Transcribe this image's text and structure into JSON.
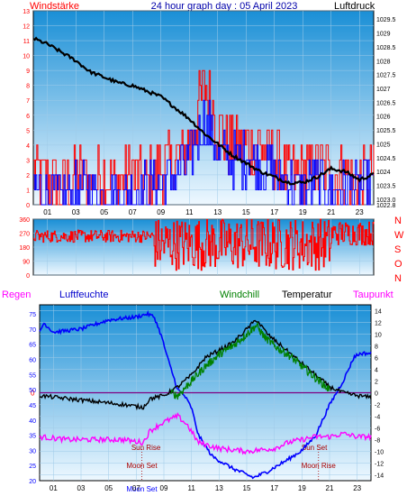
{
  "header": {
    "left_label": "Windstärke",
    "title": "24 hour graph day : 05 April 2023",
    "right_label": "Luftdruck"
  },
  "labels": {
    "regen": "Regen",
    "luftfeuchte": "Luftfeuchte",
    "windchill": "Windchill",
    "temperatur": "Temperatur",
    "taupunkt": "Taupunkt",
    "sun_rise": "Sun Rise",
    "sun_set": "Sun Set",
    "moon_set": "Moon Set",
    "moon_rise": "Moon Rise",
    "moon_set_axis": "Moon Set",
    "compass": [
      "N",
      "W",
      "S",
      "O",
      "N"
    ]
  },
  "colors": {
    "bg_top": "#1a8fd6",
    "bg_bottom": "#eaf6ff",
    "wind": "#ff0000",
    "gust": "#0000ff",
    "pressure": "#000000",
    "winddir": "#ff0000",
    "humidity": "#0000ff",
    "temperature": "#000000",
    "windchill": "#008000",
    "dewpoint": "#ff00ff",
    "axis_red": "#ff0000",
    "axis_blue": "#0000ff",
    "zero_line": "#800080"
  },
  "chart_data": [
    {
      "type": "line",
      "name": "wind-pressure",
      "x_ticks": [
        "01",
        "03",
        "05",
        "07",
        "09",
        "11",
        "13",
        "15",
        "17",
        "19",
        "21",
        "23"
      ],
      "xlim": [
        0,
        24
      ],
      "y_left": {
        "ticks": [
          "0",
          "1",
          "2",
          "3",
          "4",
          "5",
          "6",
          "7",
          "8",
          "9",
          "10",
          "11",
          "12",
          "13"
        ],
        "ylim": [
          0,
          13
        ]
      },
      "y_right": {
        "ticks": [
          "1022.8",
          "1023.0",
          "1023.5",
          "1024",
          "1024.5",
          "1025",
          "1025.5",
          "1026",
          "1026.5",
          "1027",
          "1027.5",
          "1028",
          "1028.5",
          "1029",
          "1029.5"
        ],
        "ylim": [
          1022.8,
          1029.8
        ]
      },
      "wind_base": [
        [
          0,
          2
        ],
        [
          2,
          1
        ],
        [
          3,
          2
        ],
        [
          4,
          1.5
        ],
        [
          5,
          2
        ],
        [
          6,
          1.5
        ],
        [
          7,
          2
        ],
        [
          8,
          1.5
        ],
        [
          9,
          2.5
        ],
        [
          10,
          3
        ],
        [
          11,
          4
        ],
        [
          11.5,
          6
        ],
        [
          12,
          8
        ],
        [
          12.5,
          7
        ],
        [
          13,
          5
        ],
        [
          14,
          4
        ],
        [
          15,
          4
        ],
        [
          16,
          4
        ],
        [
          17,
          3
        ],
        [
          18,
          2
        ],
        [
          19,
          2
        ],
        [
          20,
          2.5
        ],
        [
          21,
          2
        ],
        [
          22,
          2
        ],
        [
          23,
          1.5
        ],
        [
          24,
          2
        ]
      ],
      "gust_base": [
        [
          0,
          1
        ],
        [
          2,
          0.5
        ],
        [
          4,
          1
        ],
        [
          6,
          0.5
        ],
        [
          8,
          1
        ],
        [
          9,
          1.5
        ],
        [
          10,
          2
        ],
        [
          11,
          3
        ],
        [
          11.5,
          4.5
        ],
        [
          12,
          5.5
        ],
        [
          12.5,
          5
        ],
        [
          13,
          3.5
        ],
        [
          14,
          3
        ],
        [
          15,
          3
        ],
        [
          16,
          3
        ],
        [
          17,
          2
        ],
        [
          18,
          1.5
        ],
        [
          19,
          1
        ],
        [
          20,
          1.5
        ],
        [
          21,
          1
        ],
        [
          22,
          1
        ],
        [
          24,
          1
        ]
      ],
      "pressure": [
        [
          0,
          1028.8
        ],
        [
          1,
          1028.6
        ],
        [
          2,
          1028.3
        ],
        [
          3,
          1028.0
        ],
        [
          4,
          1027.6
        ],
        [
          5,
          1027.4
        ],
        [
          6,
          1027.2
        ],
        [
          7,
          1027.1
        ],
        [
          8,
          1026.9
        ],
        [
          9,
          1026.7
        ],
        [
          10,
          1026.3
        ],
        [
          11,
          1025.9
        ],
        [
          12,
          1025.4
        ],
        [
          13,
          1025.0
        ],
        [
          14,
          1024.6
        ],
        [
          15,
          1024.3
        ],
        [
          16,
          1024.0
        ],
        [
          17,
          1023.8
        ],
        [
          18,
          1023.6
        ],
        [
          19,
          1023.6
        ],
        [
          20,
          1023.8
        ],
        [
          21,
          1024.1
        ],
        [
          22,
          1024.0
        ],
        [
          23,
          1023.7
        ],
        [
          24,
          1023.9
        ]
      ]
    },
    {
      "type": "line",
      "name": "wind-direction",
      "y_ticks": [
        "0",
        "90",
        "180",
        "270",
        "360"
      ],
      "ylim": [
        0,
        360
      ],
      "x_ticks": [
        "01",
        "03",
        "05",
        "07",
        "09",
        "11",
        "13",
        "15",
        "17",
        "19",
        "21",
        "23"
      ],
      "segments": [
        {
          "from": 0,
          "to": 8.5,
          "center": 250,
          "spread": 40
        },
        {
          "from": 8.5,
          "to": 21,
          "center": 200,
          "spread": 170
        },
        {
          "from": 21,
          "to": 24,
          "center": 270,
          "spread": 80
        }
      ]
    },
    {
      "type": "line",
      "name": "temperature-humidity",
      "x_ticks": [
        "01",
        "03",
        "05",
        "07",
        "09",
        "11",
        "13",
        "15",
        "17",
        "19",
        "21",
        "23"
      ],
      "xlim": [
        0,
        24
      ],
      "y_left": {
        "ticks": [
          "20",
          "25",
          "30",
          "35",
          "40",
          "45",
          "50",
          "55",
          "60",
          "65",
          "70",
          "75"
        ],
        "ylim": [
          20,
          78
        ]
      },
      "y_right": {
        "ticks": [
          "-14",
          "-12",
          "-10",
          "-8",
          "-6",
          "-4",
          "-2",
          "0",
          "2",
          "4",
          "6",
          "8",
          "10",
          "12",
          "14"
        ],
        "ylim": [
          -15,
          15
        ]
      },
      "zero_label": "0",
      "humidity": [
        [
          0,
          69
        ],
        [
          0.3,
          72
        ],
        [
          1,
          69
        ],
        [
          3,
          70
        ],
        [
          5,
          73
        ],
        [
          7,
          74
        ],
        [
          7.8,
          75
        ],
        [
          8.3,
          74
        ],
        [
          8.8,
          68
        ],
        [
          9.3,
          60
        ],
        [
          10,
          50
        ],
        [
          10.5,
          48
        ],
        [
          11,
          44
        ],
        [
          11.5,
          35
        ],
        [
          12.5,
          28
        ],
        [
          14,
          24
        ],
        [
          15.5,
          21
        ],
        [
          16.5,
          23
        ],
        [
          18,
          27
        ],
        [
          19,
          30
        ],
        [
          20,
          35
        ],
        [
          21,
          45
        ],
        [
          22,
          53
        ],
        [
          22.8,
          61
        ],
        [
          23.3,
          62
        ],
        [
          24,
          62
        ]
      ],
      "temperature": [
        [
          0,
          -0.5
        ],
        [
          2,
          -1
        ],
        [
          4,
          -1.5
        ],
        [
          6,
          -2
        ],
        [
          7.5,
          -2.5
        ],
        [
          8,
          -1
        ],
        [
          9,
          -0.5
        ],
        [
          10,
          1
        ],
        [
          11,
          3
        ],
        [
          12,
          6
        ],
        [
          14,
          8.5
        ],
        [
          15.7,
          12.5
        ],
        [
          16.5,
          10
        ],
        [
          18,
          7
        ],
        [
          19,
          5
        ],
        [
          20,
          3
        ],
        [
          21,
          1
        ],
        [
          22,
          0
        ],
        [
          23,
          -0.5
        ],
        [
          24,
          -0.8
        ]
      ],
      "windchill": [
        [
          9.5,
          0
        ],
        [
          10,
          -0.5
        ],
        [
          11,
          2
        ],
        [
          12,
          4.5
        ],
        [
          13,
          6.5
        ],
        [
          14,
          8
        ],
        [
          15,
          10
        ],
        [
          15.7,
          11.5
        ],
        [
          16.3,
          9.5
        ],
        [
          17,
          8
        ],
        [
          18,
          6.5
        ],
        [
          19,
          4.5
        ],
        [
          20,
          2.5
        ],
        [
          21,
          0.5
        ]
      ],
      "dewpoint": [
        [
          0,
          -7.5
        ],
        [
          2,
          -8
        ],
        [
          4,
          -8
        ],
        [
          6,
          -8
        ],
        [
          7.5,
          -8.5
        ],
        [
          8,
          -6.5
        ],
        [
          9,
          -5
        ],
        [
          10,
          -4
        ],
        [
          10.7,
          -5.5
        ],
        [
          11.5,
          -8.5
        ],
        [
          13,
          -9.5
        ],
        [
          15,
          -10
        ],
        [
          17,
          -9.5
        ],
        [
          18,
          -8.5
        ],
        [
          19,
          -8
        ],
        [
          20,
          -7.5
        ],
        [
          21,
          -7.5
        ],
        [
          22,
          -7
        ],
        [
          23,
          -7.5
        ],
        [
          24,
          -7.5
        ]
      ],
      "sun_rise_hour": 7.7,
      "sun_set_hour": 19.9,
      "moon_set_hour": 7.4,
      "moon_rise_hour": 20.2
    }
  ]
}
